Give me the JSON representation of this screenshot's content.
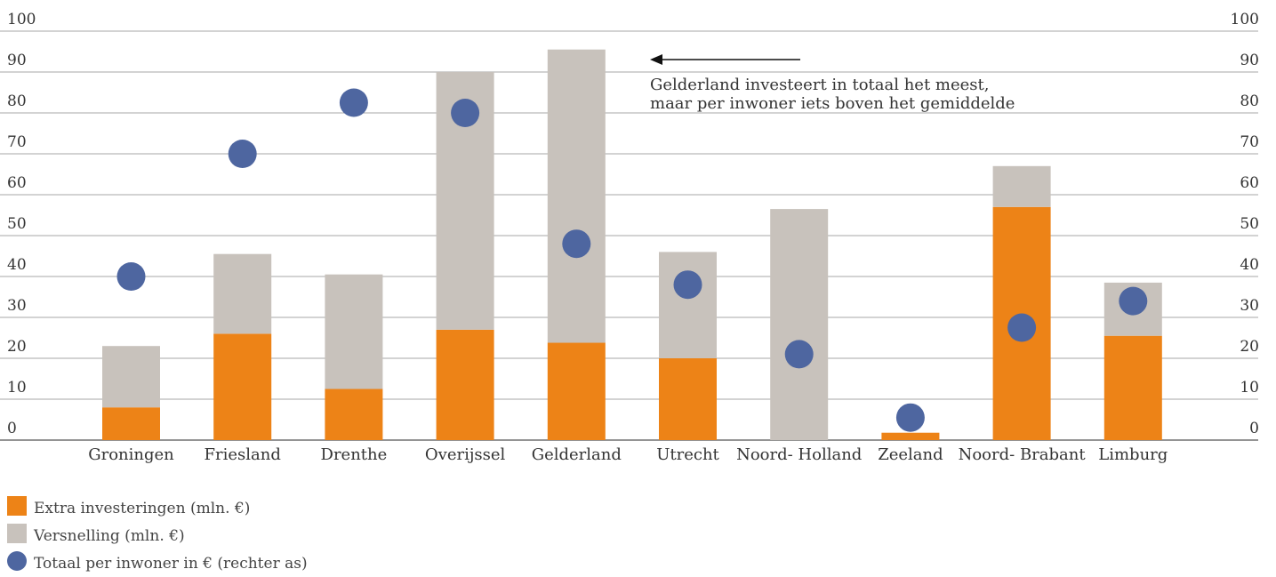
{
  "chart_data": {
    "type": "bar",
    "stacked": true,
    "categories": [
      "Groningen",
      "Friesland",
      "Drenthe",
      "Overijssel",
      "Gelderland",
      "Utrecht",
      "Noord- Holland",
      "Zeeland",
      "Noord- Brabant",
      "Limburg"
    ],
    "series": [
      {
        "name": "Extra investeringen (mln. €)",
        "type": "bar",
        "axis": "left",
        "color": "#ed8317",
        "values": [
          8,
          26,
          12.5,
          27,
          23.8,
          20,
          0,
          1.8,
          57,
          25.5
        ]
      },
      {
        "name": "Versnelling (mln. €)",
        "type": "bar",
        "axis": "left",
        "color": "#c8c2bc",
        "values": [
          15,
          19.5,
          28,
          63,
          71.7,
          26,
          56.5,
          0,
          10,
          13
        ]
      },
      {
        "name": "Totaal per inwoner in € (rechter as)",
        "type": "scatter",
        "axis": "right",
        "color": "#4e66a0",
        "values": [
          40,
          70,
          82.5,
          80,
          48,
          38,
          21,
          5.5,
          27.5,
          34
        ]
      }
    ],
    "yticks": [
      "0",
      "10",
      "20",
      "30",
      "40",
      "50",
      "60",
      "70",
      "80",
      "90",
      "100"
    ],
    "ylim": [
      0,
      100
    ],
    "y2ticks": [
      "0",
      "10",
      "20",
      "30",
      "40",
      "50",
      "60",
      "70",
      "80",
      "90",
      "100"
    ],
    "y2lim": [
      0,
      100
    ],
    "grid": true,
    "legend_position": "bottom-left",
    "annotation": {
      "lines": [
        "Gelderland investeert in totaal het meest,",
        "maar per inwoner iets boven het gemiddelde"
      ],
      "arrow": "left"
    }
  }
}
